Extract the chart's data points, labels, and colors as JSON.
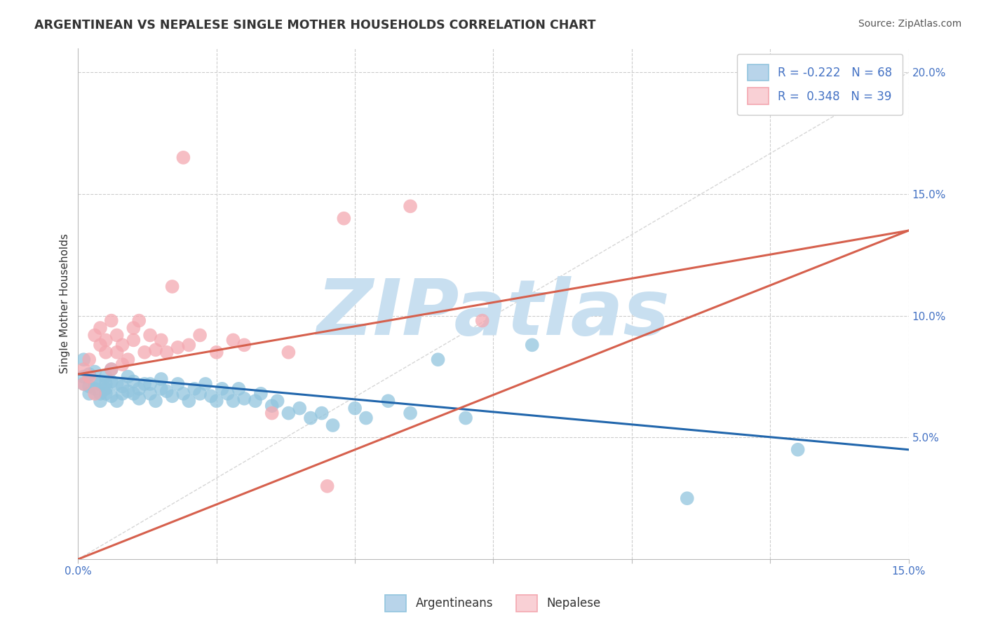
{
  "title": "ARGENTINEAN VS NEPALESE SINGLE MOTHER HOUSEHOLDS CORRELATION CHART",
  "source": "Source: ZipAtlas.com",
  "ylabel": "Single Mother Households",
  "xlim": [
    0.0,
    0.15
  ],
  "ylim": [
    0.0,
    0.21
  ],
  "blue_color": "#92c5de",
  "pink_color": "#f4a8b0",
  "blue_line_color": "#2166ac",
  "pink_line_color": "#d6604d",
  "ref_line_color": "#cccccc",
  "background_color": "#ffffff",
  "grid_color": "#cccccc",
  "watermark": "ZIPatlas",
  "watermark_color": "#c8dff0",
  "blue_R": -0.222,
  "blue_N": 68,
  "pink_R": 0.348,
  "pink_N": 39,
  "blue_trend_x0": 0.0,
  "blue_trend_y0": 0.076,
  "blue_trend_x1": 0.15,
  "blue_trend_y1": 0.045,
  "pink_trend_x0": 0.0,
  "pink_trend_y0": 0.076,
  "pink_trend_x1": 0.15,
  "pink_trend_y1": 0.135,
  "blue_scatter_x": [
    0.001,
    0.001,
    0.001,
    0.002,
    0.002,
    0.002,
    0.003,
    0.003,
    0.003,
    0.004,
    0.004,
    0.004,
    0.005,
    0.005,
    0.005,
    0.005,
    0.006,
    0.006,
    0.006,
    0.007,
    0.007,
    0.008,
    0.008,
    0.009,
    0.009,
    0.01,
    0.01,
    0.011,
    0.011,
    0.012,
    0.013,
    0.013,
    0.014,
    0.015,
    0.015,
    0.016,
    0.017,
    0.018,
    0.019,
    0.02,
    0.021,
    0.022,
    0.023,
    0.024,
    0.025,
    0.026,
    0.027,
    0.028,
    0.029,
    0.03,
    0.032,
    0.033,
    0.035,
    0.036,
    0.038,
    0.04,
    0.042,
    0.044,
    0.046,
    0.05,
    0.052,
    0.056,
    0.06,
    0.065,
    0.07,
    0.082,
    0.11,
    0.13
  ],
  "blue_scatter_y": [
    0.075,
    0.072,
    0.082,
    0.068,
    0.076,
    0.071,
    0.073,
    0.07,
    0.077,
    0.068,
    0.072,
    0.065,
    0.07,
    0.075,
    0.072,
    0.068,
    0.073,
    0.067,
    0.078,
    0.072,
    0.065,
    0.071,
    0.068,
    0.075,
    0.069,
    0.068,
    0.073,
    0.07,
    0.066,
    0.072,
    0.068,
    0.072,
    0.065,
    0.07,
    0.074,
    0.069,
    0.067,
    0.072,
    0.068,
    0.065,
    0.07,
    0.068,
    0.072,
    0.067,
    0.065,
    0.07,
    0.068,
    0.065,
    0.07,
    0.066,
    0.065,
    0.068,
    0.063,
    0.065,
    0.06,
    0.062,
    0.058,
    0.06,
    0.055,
    0.062,
    0.058,
    0.065,
    0.06,
    0.082,
    0.058,
    0.088,
    0.025,
    0.045
  ],
  "pink_scatter_x": [
    0.001,
    0.001,
    0.002,
    0.002,
    0.003,
    0.003,
    0.004,
    0.004,
    0.005,
    0.005,
    0.006,
    0.006,
    0.007,
    0.007,
    0.008,
    0.008,
    0.009,
    0.01,
    0.01,
    0.011,
    0.012,
    0.013,
    0.014,
    0.015,
    0.016,
    0.017,
    0.018,
    0.019,
    0.02,
    0.022,
    0.025,
    0.028,
    0.03,
    0.035,
    0.038,
    0.045,
    0.048,
    0.06,
    0.073
  ],
  "pink_scatter_y": [
    0.072,
    0.078,
    0.075,
    0.082,
    0.068,
    0.092,
    0.088,
    0.095,
    0.085,
    0.09,
    0.078,
    0.098,
    0.085,
    0.092,
    0.08,
    0.088,
    0.082,
    0.09,
    0.095,
    0.098,
    0.085,
    0.092,
    0.086,
    0.09,
    0.085,
    0.112,
    0.087,
    0.165,
    0.088,
    0.092,
    0.085,
    0.09,
    0.088,
    0.06,
    0.085,
    0.03,
    0.14,
    0.145,
    0.098
  ]
}
